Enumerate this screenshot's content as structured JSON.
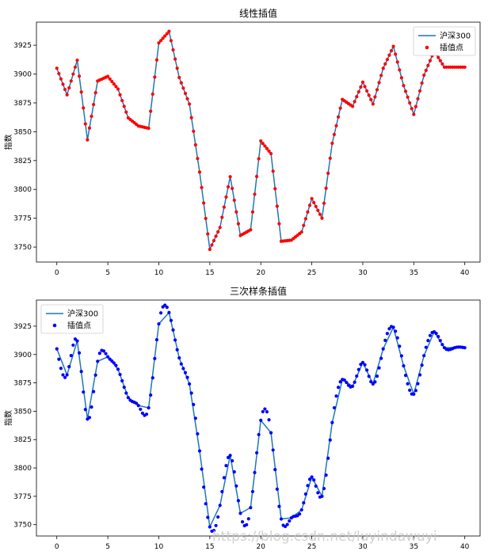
{
  "chart_data": [
    {
      "type": "line",
      "title": "线性插值",
      "xlabel": "",
      "ylabel": "指数",
      "xlim": [
        -2,
        41.5
      ],
      "ylim": [
        3737,
        3945
      ],
      "xticks": [
        0,
        5,
        10,
        15,
        20,
        25,
        30,
        35,
        40
      ],
      "yticks": [
        3750,
        3775,
        3800,
        3825,
        3850,
        3875,
        3900,
        3925
      ],
      "legend_position": "upper-right",
      "grid": false,
      "series": [
        {
          "name": "沪深300",
          "kind": "line",
          "color": "#1f77b4",
          "x": [
            0,
            1,
            2,
            3,
            4,
            5,
            6,
            7,
            8,
            9,
            10,
            11,
            12,
            13,
            14,
            15,
            16,
            17,
            18,
            19,
            20,
            21,
            22,
            23,
            24,
            25,
            26,
            27,
            28,
            29,
            30,
            31,
            32,
            33,
            34,
            35,
            36,
            37,
            38,
            39,
            40
          ],
          "y": [
            3905,
            3882,
            3912,
            3843,
            3894,
            3898,
            3887,
            3862,
            3855,
            3853,
            3927,
            3937,
            3897,
            3874,
            3815,
            3748,
            3767,
            3811,
            3760,
            3765,
            3842,
            3831,
            3755,
            3756,
            3763,
            3792,
            3775,
            3840,
            3878,
            3872,
            3893,
            3874,
            3905,
            3924,
            3890,
            3865,
            3899,
            3920,
            3906,
            3906,
            3906
          ]
        },
        {
          "name": "插值点",
          "kind": "scatter",
          "color": "#ff0000",
          "interpolation": "linear",
          "samples_per_segment": 5
        }
      ]
    },
    {
      "type": "line",
      "title": "三次样条插值",
      "xlabel": "",
      "ylabel": "指数",
      "xlim": [
        -2,
        41.5
      ],
      "ylim": [
        3740,
        3948
      ],
      "xticks": [
        0,
        5,
        10,
        15,
        20,
        25,
        30,
        35,
        40
      ],
      "yticks": [
        3750,
        3775,
        3800,
        3825,
        3850,
        3875,
        3900,
        3925
      ],
      "legend_position": "upper-left",
      "grid": false,
      "series": [
        {
          "name": "沪深300",
          "kind": "line",
          "color": "#1f77b4",
          "x": [
            0,
            1,
            2,
            3,
            4,
            5,
            6,
            7,
            8,
            9,
            10,
            11,
            12,
            13,
            14,
            15,
            16,
            17,
            18,
            19,
            20,
            21,
            22,
            23,
            24,
            25,
            26,
            27,
            28,
            29,
            30,
            31,
            32,
            33,
            34,
            35,
            36,
            37,
            38,
            39,
            40
          ],
          "y": [
            3905,
            3882,
            3912,
            3843,
            3894,
            3898,
            3887,
            3862,
            3855,
            3853,
            3927,
            3937,
            3897,
            3874,
            3815,
            3748,
            3767,
            3811,
            3760,
            3765,
            3842,
            3831,
            3755,
            3756,
            3763,
            3792,
            3775,
            3840,
            3878,
            3872,
            3893,
            3874,
            3905,
            3924,
            3890,
            3865,
            3899,
            3920,
            3906,
            3906,
            3906
          ]
        },
        {
          "name": "插值点",
          "kind": "scatter",
          "color": "#0000ff",
          "interpolation": "cubic-spline",
          "samples_per_segment": 5
        }
      ]
    }
  ],
  "watermark": "https://blog.csdn.net/luyindawuyi"
}
